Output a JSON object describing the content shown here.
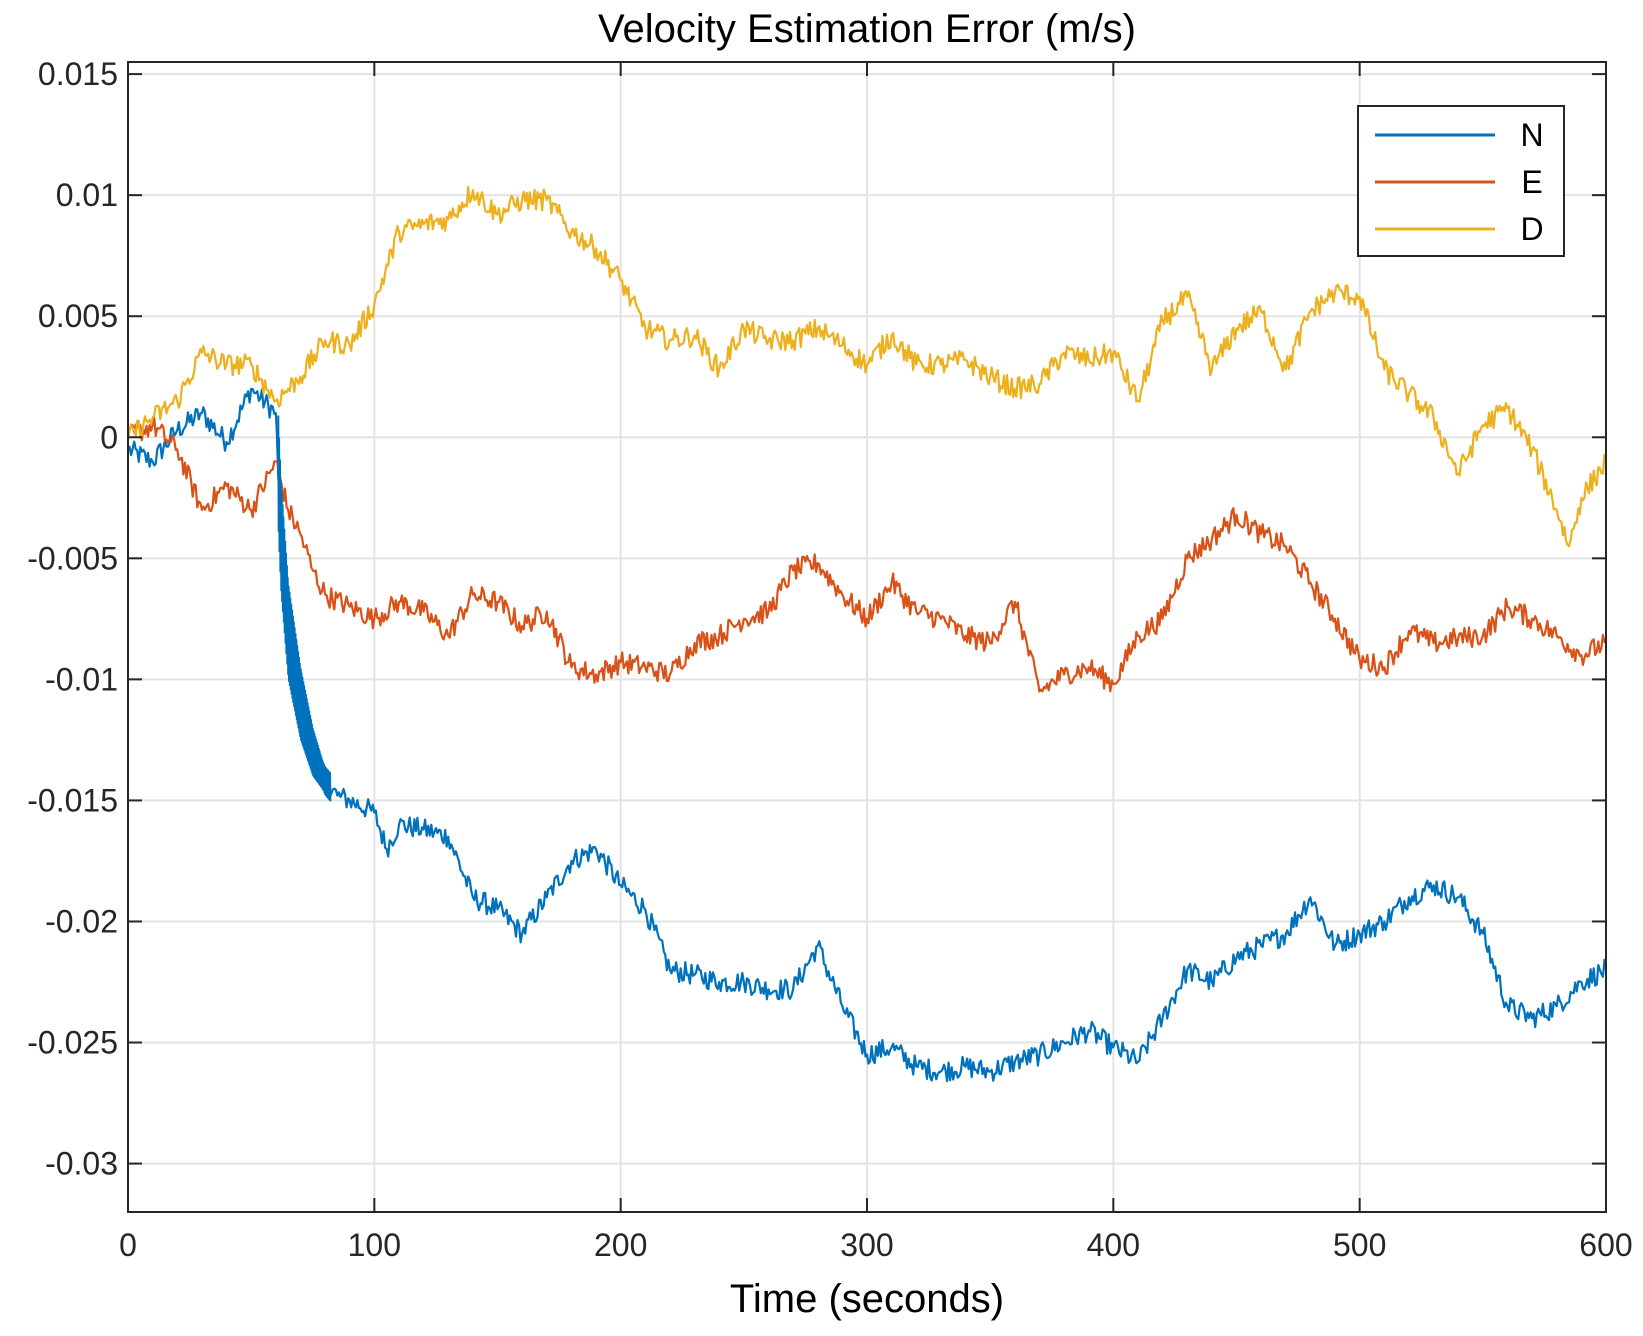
{
  "chart_data": {
    "type": "line",
    "title": "Velocity Estimation Error (m/s)",
    "xlabel": "Time (seconds)",
    "ylabel": "",
    "xlim": [
      0,
      600
    ],
    "ylim": [
      -0.032,
      0.0155
    ],
    "xticks": [
      0,
      100,
      200,
      300,
      400,
      500,
      600
    ],
    "xtick_labels": [
      "0",
      "100",
      "200",
      "300",
      "400",
      "500",
      "600"
    ],
    "yticks": [
      0.015,
      0.01,
      0.005,
      0,
      -0.005,
      -0.01,
      -0.015,
      -0.02,
      -0.025,
      -0.03
    ],
    "ytick_labels": [
      "0.015",
      "0.01",
      "0.005",
      "0",
      "-0.005",
      "-0.01",
      "-0.015",
      "-0.02",
      "-0.025",
      "-0.03"
    ],
    "grid": true,
    "legend_position": "top-right",
    "series": [
      {
        "name": "N",
        "color": "#0072BD",
        "x": [
          0,
          10,
          20,
          30,
          40,
          50,
          60,
          62,
          65,
          70,
          75,
          80,
          85,
          90,
          100,
          105,
          110,
          120,
          130,
          140,
          150,
          160,
          170,
          180,
          190,
          200,
          210,
          220,
          230,
          240,
          250,
          260,
          270,
          280,
          290,
          300,
          310,
          320,
          330,
          340,
          350,
          360,
          370,
          380,
          390,
          400,
          410,
          420,
          430,
          440,
          450,
          460,
          470,
          480,
          490,
          500,
          510,
          520,
          530,
          540,
          550,
          560,
          570,
          580,
          590,
          600
        ],
        "y": [
          -0.0005,
          -0.001,
          0.0003,
          0.001,
          -0.0002,
          0.002,
          0.001,
          -0.004,
          -0.008,
          -0.011,
          -0.013,
          -0.0142,
          -0.0148,
          -0.015,
          -0.0155,
          -0.017,
          -0.016,
          -0.0162,
          -0.0165,
          -0.019,
          -0.0195,
          -0.0205,
          -0.019,
          -0.0175,
          -0.017,
          -0.0185,
          -0.0195,
          -0.022,
          -0.0222,
          -0.0225,
          -0.0225,
          -0.0228,
          -0.0228,
          -0.021,
          -0.0235,
          -0.0255,
          -0.0252,
          -0.026,
          -0.0262,
          -0.026,
          -0.0262,
          -0.0258,
          -0.0255,
          -0.025,
          -0.0245,
          -0.0252,
          -0.0258,
          -0.024,
          -0.022,
          -0.0225,
          -0.0215,
          -0.021,
          -0.0205,
          -0.019,
          -0.021,
          -0.0205,
          -0.02,
          -0.019,
          -0.0185,
          -0.019,
          -0.0205,
          -0.0235,
          -0.024,
          -0.0235,
          -0.0225,
          -0.022
        ]
      },
      {
        "name": "E",
        "color": "#D95319",
        "x": [
          0,
          10,
          20,
          30,
          40,
          50,
          60,
          65,
          70,
          75,
          80,
          90,
          100,
          110,
          120,
          130,
          140,
          150,
          160,
          170,
          180,
          190,
          200,
          210,
          220,
          230,
          240,
          250,
          260,
          270,
          280,
          290,
          300,
          310,
          320,
          330,
          340,
          350,
          360,
          370,
          380,
          390,
          400,
          410,
          420,
          430,
          440,
          450,
          460,
          470,
          480,
          490,
          500,
          510,
          520,
          530,
          540,
          550,
          560,
          570,
          580,
          590,
          600
        ],
        "y": [
          0,
          0.0005,
          -0.0005,
          -0.003,
          -0.002,
          -0.003,
          -0.001,
          -0.003,
          -0.004,
          -0.0055,
          -0.0065,
          -0.007,
          -0.0075,
          -0.0068,
          -0.0072,
          -0.0082,
          -0.0065,
          -0.0068,
          -0.0078,
          -0.0072,
          -0.0095,
          -0.0098,
          -0.0093,
          -0.0095,
          -0.0098,
          -0.0085,
          -0.0082,
          -0.0075,
          -0.0072,
          -0.0055,
          -0.0052,
          -0.0065,
          -0.0075,
          -0.006,
          -0.0072,
          -0.0075,
          -0.0082,
          -0.0085,
          -0.0068,
          -0.0105,
          -0.0098,
          -0.0095,
          -0.0102,
          -0.0082,
          -0.0075,
          -0.005,
          -0.0042,
          -0.0032,
          -0.004,
          -0.0045,
          -0.006,
          -0.0075,
          -0.0092,
          -0.0095,
          -0.008,
          -0.0085,
          -0.0083,
          -0.0082,
          -0.007,
          -0.0075,
          -0.0082,
          -0.009,
          -0.0085
        ]
      },
      {
        "name": "D",
        "color": "#EDB120",
        "x": [
          0,
          10,
          20,
          30,
          40,
          50,
          60,
          70,
          80,
          90,
          100,
          110,
          120,
          130,
          140,
          150,
          160,
          170,
          180,
          190,
          200,
          210,
          220,
          230,
          240,
          250,
          260,
          270,
          280,
          290,
          300,
          310,
          320,
          330,
          340,
          350,
          360,
          370,
          380,
          390,
          400,
          410,
          420,
          430,
          440,
          450,
          460,
          470,
          480,
          490,
          500,
          510,
          520,
          530,
          540,
          550,
          560,
          570,
          580,
          585,
          590,
          600
        ],
        "y": [
          0,
          0.0008,
          0.0015,
          0.0035,
          0.003,
          0.003,
          0.0015,
          0.0025,
          0.004,
          0.0038,
          0.0055,
          0.0085,
          0.0088,
          0.009,
          0.0102,
          0.0092,
          0.0098,
          0.0098,
          0.0085,
          0.0078,
          0.0065,
          0.0045,
          0.004,
          0.0042,
          0.0028,
          0.0045,
          0.004,
          0.004,
          0.0045,
          0.0038,
          0.003,
          0.0042,
          0.003,
          0.003,
          0.0032,
          0.0025,
          0.002,
          0.0022,
          0.0035,
          0.0032,
          0.0035,
          0.0015,
          0.0048,
          0.0058,
          0.0028,
          0.0045,
          0.0052,
          0.0028,
          0.0052,
          0.006,
          0.0058,
          0.0028,
          0.0018,
          0.0008,
          -0.0015,
          0.0005,
          0.0012,
          -0.0005,
          -0.003,
          -0.0045,
          -0.0025,
          -0.001
        ]
      }
    ]
  }
}
